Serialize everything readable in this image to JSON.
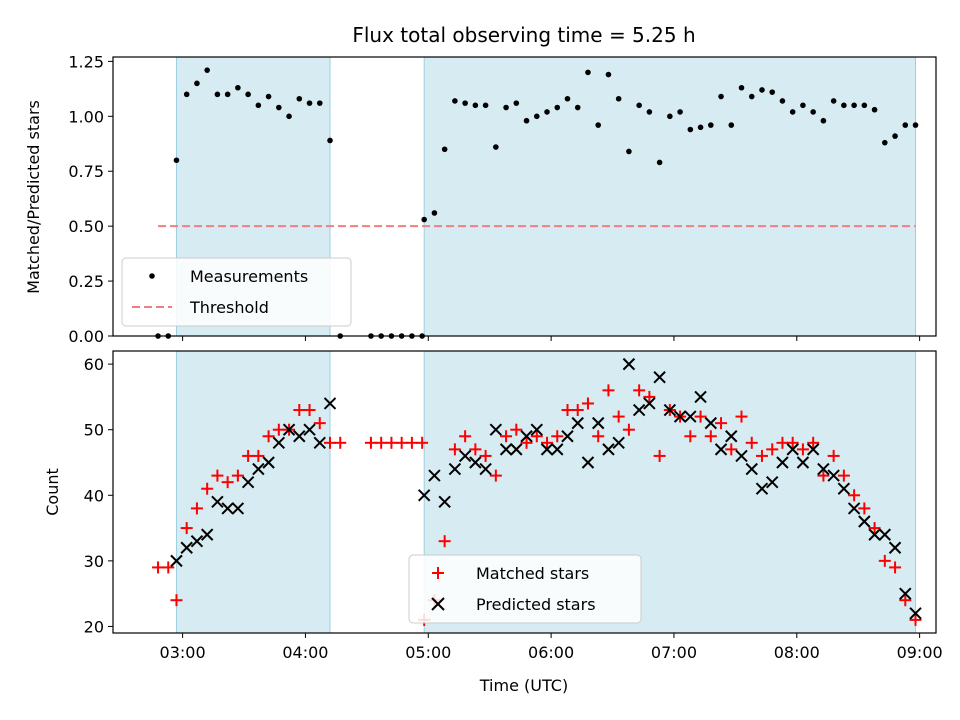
{
  "chart_data": [
    {
      "type": "scatter",
      "title": "Flux total observing time = 5.25 h",
      "xlabel": "",
      "ylabel": "Matched/Predicted stars",
      "ylim": [
        0,
        1.27
      ],
      "yticks": [
        "0.00",
        "0.25",
        "0.50",
        "0.75",
        "1.00",
        "1.25"
      ],
      "xlim": [
        "02:26",
        "09:08"
      ],
      "shaded_intervals": [
        [
          "02:57",
          "04:12"
        ],
        [
          "04:58",
          "08:58"
        ]
      ],
      "threshold": {
        "name": "Threshold",
        "y": 0.5,
        "x_range": [
          "02:48",
          "08:58"
        ],
        "color": "#f08080"
      },
      "legend": {
        "position": "lower-left",
        "entries": [
          "Measurements",
          "Threshold"
        ]
      },
      "series": [
        {
          "name": "Measurements",
          "marker": "dot",
          "color": "#000000",
          "x": [
            "02:48",
            "02:53",
            "02:57",
            "03:02",
            "03:07",
            "03:12",
            "03:17",
            "03:22",
            "03:27",
            "03:32",
            "03:37",
            "03:42",
            "03:47",
            "03:52",
            "03:57",
            "04:02",
            "04:07",
            "04:12",
            "04:17",
            "04:32",
            "04:37",
            "04:42",
            "04:47",
            "04:52",
            "04:57",
            "04:58",
            "05:03",
            "05:08",
            "05:13",
            "05:18",
            "05:23",
            "05:28",
            "05:33",
            "05:38",
            "05:43",
            "05:48",
            "05:53",
            "05:58",
            "06:03",
            "06:08",
            "06:13",
            "06:18",
            "06:23",
            "06:28",
            "06:33",
            "06:38",
            "06:43",
            "06:48",
            "06:53",
            "06:58",
            "07:03",
            "07:08",
            "07:13",
            "07:18",
            "07:23",
            "07:28",
            "07:33",
            "07:38",
            "07:43",
            "07:48",
            "07:53",
            "07:58",
            "08:03",
            "08:08",
            "08:13",
            "08:18",
            "08:23",
            "08:28",
            "08:33",
            "08:38",
            "08:43",
            "08:48",
            "08:53",
            "08:58"
          ],
          "y": [
            0.0,
            0.0,
            0.8,
            1.1,
            1.15,
            1.21,
            1.1,
            1.1,
            1.13,
            1.1,
            1.05,
            1.09,
            1.04,
            1.0,
            1.08,
            1.06,
            1.06,
            0.89,
            0.0,
            0.0,
            0.0,
            0.0,
            0.0,
            0.0,
            0.0,
            0.53,
            0.56,
            0.85,
            1.07,
            1.06,
            1.05,
            1.05,
            0.86,
            1.04,
            1.06,
            0.98,
            1.0,
            1.02,
            1.04,
            1.08,
            1.04,
            1.2,
            0.96,
            1.19,
            1.08,
            0.84,
            1.05,
            1.02,
            0.79,
            1.0,
            1.02,
            0.94,
            0.95,
            0.96,
            1.09,
            0.96,
            1.13,
            1.09,
            1.12,
            1.11,
            1.07,
            1.02,
            1.05,
            1.02,
            0.98,
            1.07,
            1.05,
            1.05,
            1.05,
            1.03,
            0.88,
            0.91,
            0.96,
            0.96
          ]
        }
      ]
    },
    {
      "type": "scatter",
      "title": "",
      "xlabel": "Time (UTC)",
      "ylabel": "Count",
      "ylim": [
        19,
        62
      ],
      "yticks": [
        "20",
        "30",
        "40",
        "50",
        "60"
      ],
      "xlim": [
        "02:26",
        "09:08"
      ],
      "xticks": [
        "03:00",
        "04:00",
        "05:00",
        "06:00",
        "07:00",
        "08:00",
        "09:00"
      ],
      "shaded_intervals": [
        [
          "02:57",
          "04:12"
        ],
        [
          "04:58",
          "08:58"
        ]
      ],
      "legend": {
        "position": "lower-center",
        "entries": [
          "Matched stars",
          "Predicted stars"
        ]
      },
      "series": [
        {
          "name": "Matched stars",
          "marker": "plus",
          "color": "#ff0000",
          "x": [
            "02:48",
            "02:53",
            "02:57",
            "03:02",
            "03:07",
            "03:12",
            "03:17",
            "03:22",
            "03:27",
            "03:32",
            "03:37",
            "03:42",
            "03:47",
            "03:52",
            "03:57",
            "04:02",
            "04:07",
            "04:12",
            "04:17",
            "04:32",
            "04:37",
            "04:42",
            "04:47",
            "04:52",
            "04:57",
            "04:58",
            "05:03",
            "05:08",
            "05:13",
            "05:18",
            "05:23",
            "05:28",
            "05:33",
            "05:38",
            "05:43",
            "05:48",
            "05:53",
            "05:58",
            "06:03",
            "06:08",
            "06:13",
            "06:18",
            "06:23",
            "06:28",
            "06:33",
            "06:38",
            "06:43",
            "06:48",
            "06:53",
            "06:58",
            "07:03",
            "07:08",
            "07:13",
            "07:18",
            "07:23",
            "07:28",
            "07:33",
            "07:38",
            "07:43",
            "07:48",
            "07:53",
            "07:58",
            "08:03",
            "08:08",
            "08:13",
            "08:18",
            "08:23",
            "08:28",
            "08:33",
            "08:38",
            "08:43",
            "08:48",
            "08:53",
            "08:58"
          ],
          "y": [
            29,
            29,
            24,
            35,
            38,
            41,
            43,
            42,
            43,
            46,
            46,
            49,
            50,
            50,
            53,
            53,
            51,
            48,
            48,
            48,
            48,
            48,
            48,
            48,
            48,
            21,
            24,
            33,
            47,
            49,
            47,
            46,
            43,
            49,
            50,
            48,
            49,
            48,
            49,
            53,
            53,
            54,
            49,
            56,
            52,
            50,
            56,
            55,
            46,
            53,
            52,
            49,
            52,
            49,
            51,
            47,
            52,
            48,
            46,
            47,
            48,
            48,
            47,
            48,
            43,
            46,
            43,
            40,
            38,
            35,
            30,
            29,
            24,
            21
          ]
        },
        {
          "name": "Predicted stars",
          "marker": "x",
          "color": "#000000",
          "x": [
            "02:57",
            "03:02",
            "03:07",
            "03:12",
            "03:17",
            "03:22",
            "03:27",
            "03:32",
            "03:37",
            "03:42",
            "03:47",
            "03:52",
            "03:57",
            "04:02",
            "04:07",
            "04:12",
            "04:58",
            "05:03",
            "05:08",
            "05:13",
            "05:18",
            "05:23",
            "05:28",
            "05:33",
            "05:38",
            "05:43",
            "05:48",
            "05:53",
            "05:58",
            "06:03",
            "06:08",
            "06:13",
            "06:18",
            "06:23",
            "06:28",
            "06:33",
            "06:38",
            "06:43",
            "06:48",
            "06:53",
            "06:58",
            "07:03",
            "07:08",
            "07:13",
            "07:18",
            "07:23",
            "07:28",
            "07:33",
            "07:38",
            "07:43",
            "07:48",
            "07:53",
            "07:58",
            "08:03",
            "08:08",
            "08:13",
            "08:18",
            "08:23",
            "08:28",
            "08:33",
            "08:38",
            "08:43",
            "08:48",
            "08:53",
            "08:58"
          ],
          "y": [
            30,
            32,
            33,
            34,
            39,
            38,
            38,
            42,
            44,
            45,
            48,
            50,
            49,
            50,
            48,
            54,
            40,
            43,
            39,
            44,
            46,
            45,
            44,
            50,
            47,
            47,
            49,
            50,
            47,
            47,
            49,
            51,
            45,
            51,
            47,
            48,
            60,
            53,
            54,
            58,
            53,
            52,
            52,
            55,
            51,
            47,
            49,
            46,
            44,
            41,
            42,
            45,
            47,
            45,
            47,
            44,
            43,
            41,
            38,
            36,
            34,
            34,
            32,
            25,
            22
          ]
        }
      ]
    }
  ]
}
